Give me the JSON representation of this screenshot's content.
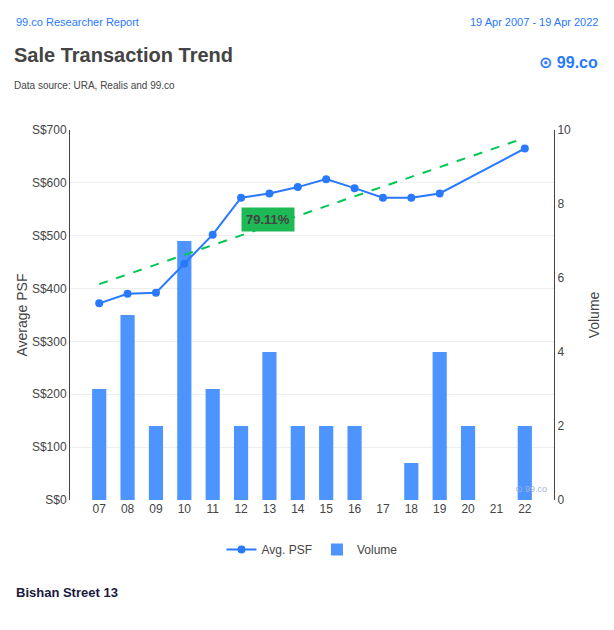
{
  "chart_data": {
    "type": "bar",
    "title": "Sale Transaction Trend",
    "subtitle": "Data source: URA, Realis and 99.co",
    "categories": [
      "07",
      "08",
      "09",
      "10",
      "11",
      "12",
      "13",
      "14",
      "15",
      "16",
      "17",
      "18",
      "19",
      "20",
      "21",
      "22"
    ],
    "series": [
      {
        "name": "Avg. PSF",
        "type": "line",
        "color": "#2979ff",
        "marker": "circle",
        "x": [
          "07",
          "08",
          "09",
          "10",
          "11",
          "12",
          "13",
          "14",
          "15",
          "16",
          "17",
          "18",
          "19",
          "22"
        ],
        "values": [
          372,
          390,
          392,
          447,
          502,
          572,
          580,
          592,
          607,
          590,
          572,
          572,
          580,
          665
        ]
      },
      {
        "name": "Volume",
        "type": "bar",
        "color": "#4d94ff",
        "axis": "y2",
        "values": [
          3,
          5,
          2,
          7,
          3,
          2,
          4,
          2,
          2,
          2,
          0,
          1,
          4,
          2,
          0,
          2
        ]
      },
      {
        "type": "line",
        "color": "#00c853",
        "line_style": "dash",
        "values": [
          408.42,
          426.86,
          445.3,
          463.75,
          482.19,
          500.63,
          519.07,
          537.52,
          555.96,
          574.4,
          592.84,
          611.28,
          629.73,
          648.17,
          666.61,
          685.05
        ]
      }
    ],
    "y_label": "Average PSF",
    "y2_label": "Volume",
    "ylim": [
      0,
      700
    ],
    "yticks": [
      {
        "value": 0,
        "label": "S$0"
      },
      {
        "value": 100,
        "label": "S$100"
      },
      {
        "value": 200,
        "label": "S$200"
      },
      {
        "value": 300,
        "label": "S$300"
      },
      {
        "value": 400,
        "label": "S$400"
      },
      {
        "value": 500,
        "label": "S$500"
      },
      {
        "value": 600,
        "label": "S$600"
      },
      {
        "value": 700,
        "label": "S$700"
      }
    ],
    "y2lim": [
      0,
      10
    ],
    "y2ticks": [
      0,
      2,
      4,
      6,
      8,
      10
    ],
    "grid": true,
    "legend": "bottom",
    "annotations": [
      {
        "text": "79.11%",
        "x": "12",
        "y": 530,
        "color": "#1db954"
      },
      {
        "text": "99.co Researcher Report",
        "color": "#2979ff"
      },
      {
        "text": "19 Apr 2007 - 19 Apr 2022",
        "color": "#2979ff"
      },
      {
        "text": "⊙ 99.co",
        "color": "#2979ff"
      },
      {
        "text": "⊙ 99.co",
        "color": "#a0b4d6"
      },
      {
        "text": "Bishan Street 13",
        "color": "#1a1a3e"
      }
    ]
  }
}
